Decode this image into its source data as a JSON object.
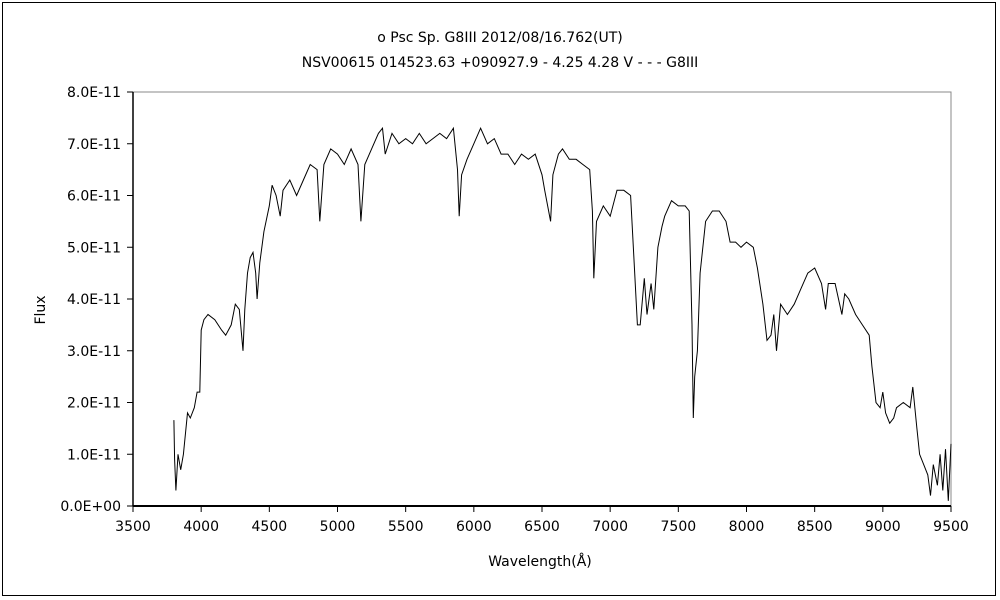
{
  "chart_data": {
    "type": "line",
    "title": "ο  Psc    Sp. G8III    2012/08/16.762(UT)",
    "subtitle": "NSV00615 014523.63 +090927.9 - 4.25 4.28 V - - - G8III",
    "xlabel": "Wavelength(Å)",
    "ylabel": "Flux",
    "xlim": [
      3500,
      9500
    ],
    "ylim": [
      0,
      8e-11
    ],
    "x_ticks": [
      3500,
      4000,
      4500,
      5000,
      5500,
      6000,
      6500,
      7000,
      7500,
      8000,
      8500,
      9000,
      9500
    ],
    "x_tick_labels": [
      "3500",
      "4000",
      "4500",
      "5000",
      "5500",
      "6000",
      "6500",
      "7000",
      "7500",
      "8000",
      "8500",
      "9000",
      "9500"
    ],
    "y_ticks": [
      0,
      1e-11,
      2e-11,
      3e-11,
      4e-11,
      5e-11,
      6e-11,
      7e-11,
      8e-11
    ],
    "y_tick_labels": [
      "0.0E+00",
      "1.0E-11",
      "2.0E-11",
      "3.0E-11",
      "4.0E-11",
      "5.0E-11",
      "6.0E-11",
      "7.0E-11",
      "8.0E-11"
    ],
    "grid": false,
    "line_color": "#000000",
    "series": [
      {
        "unit_scale": 1e-11,
        "points": [
          [
            3800,
            1.66
          ],
          [
            3805,
            0.9
          ],
          [
            3815,
            0.3
          ],
          [
            3830,
            1.0
          ],
          [
            3850,
            0.7
          ],
          [
            3870,
            1.0
          ],
          [
            3900,
            1.8
          ],
          [
            3920,
            1.7
          ],
          [
            3950,
            1.9
          ],
          [
            3970,
            2.2
          ],
          [
            3990,
            2.2
          ],
          [
            4000,
            3.4
          ],
          [
            4020,
            3.6
          ],
          [
            4050,
            3.7
          ],
          [
            4100,
            3.6
          ],
          [
            4150,
            3.4
          ],
          [
            4180,
            3.3
          ],
          [
            4220,
            3.5
          ],
          [
            4250,
            3.9
          ],
          [
            4280,
            3.8
          ],
          [
            4307,
            3.0
          ],
          [
            4320,
            3.8
          ],
          [
            4340,
            4.5
          ],
          [
            4360,
            4.8
          ],
          [
            4380,
            4.9
          ],
          [
            4400,
            4.5
          ],
          [
            4410,
            4.0
          ],
          [
            4430,
            4.7
          ],
          [
            4460,
            5.3
          ],
          [
            4500,
            5.8
          ],
          [
            4520,
            6.2
          ],
          [
            4550,
            6.0
          ],
          [
            4580,
            5.6
          ],
          [
            4600,
            6.1
          ],
          [
            4650,
            6.3
          ],
          [
            4700,
            6.0
          ],
          [
            4750,
            6.3
          ],
          [
            4800,
            6.6
          ],
          [
            4850,
            6.5
          ],
          [
            4870,
            5.5
          ],
          [
            4900,
            6.6
          ],
          [
            4950,
            6.9
          ],
          [
            5000,
            6.8
          ],
          [
            5050,
            6.6
          ],
          [
            5100,
            6.9
          ],
          [
            5150,
            6.6
          ],
          [
            5172,
            5.5
          ],
          [
            5200,
            6.6
          ],
          [
            5250,
            6.9
          ],
          [
            5300,
            7.2
          ],
          [
            5330,
            7.3
          ],
          [
            5350,
            6.8
          ],
          [
            5400,
            7.2
          ],
          [
            5450,
            7.0
          ],
          [
            5500,
            7.1
          ],
          [
            5550,
            7.0
          ],
          [
            5600,
            7.2
          ],
          [
            5650,
            7.0
          ],
          [
            5700,
            7.1
          ],
          [
            5750,
            7.2
          ],
          [
            5800,
            7.1
          ],
          [
            5850,
            7.3
          ],
          [
            5880,
            6.5
          ],
          [
            5893,
            5.6
          ],
          [
            5910,
            6.4
          ],
          [
            5950,
            6.7
          ],
          [
            6000,
            7.0
          ],
          [
            6050,
            7.3
          ],
          [
            6100,
            7.0
          ],
          [
            6150,
            7.1
          ],
          [
            6200,
            6.8
          ],
          [
            6250,
            6.8
          ],
          [
            6300,
            6.6
          ],
          [
            6350,
            6.8
          ],
          [
            6400,
            6.7
          ],
          [
            6450,
            6.8
          ],
          [
            6500,
            6.4
          ],
          [
            6520,
            6.1
          ],
          [
            6563,
            5.5
          ],
          [
            6580,
            6.4
          ],
          [
            6620,
            6.8
          ],
          [
            6650,
            6.9
          ],
          [
            6700,
            6.7
          ],
          [
            6750,
            6.7
          ],
          [
            6800,
            6.6
          ],
          [
            6850,
            6.5
          ],
          [
            6870,
            5.7
          ],
          [
            6880,
            4.4
          ],
          [
            6900,
            5.5
          ],
          [
            6950,
            5.8
          ],
          [
            7000,
            5.6
          ],
          [
            7050,
            6.1
          ],
          [
            7100,
            6.1
          ],
          [
            7150,
            6.0
          ],
          [
            7180,
            4.5
          ],
          [
            7200,
            3.5
          ],
          [
            7220,
            3.5
          ],
          [
            7250,
            4.4
          ],
          [
            7270,
            3.7
          ],
          [
            7300,
            4.3
          ],
          [
            7320,
            3.8
          ],
          [
            7350,
            5.0
          ],
          [
            7380,
            5.4
          ],
          [
            7400,
            5.6
          ],
          [
            7450,
            5.9
          ],
          [
            7500,
            5.8
          ],
          [
            7550,
            5.8
          ],
          [
            7580,
            5.7
          ],
          [
            7600,
            3.5
          ],
          [
            7610,
            1.7
          ],
          [
            7620,
            2.5
          ],
          [
            7640,
            3.0
          ],
          [
            7660,
            4.5
          ],
          [
            7700,
            5.5
          ],
          [
            7750,
            5.7
          ],
          [
            7800,
            5.7
          ],
          [
            7850,
            5.5
          ],
          [
            7880,
            5.1
          ],
          [
            7920,
            5.1
          ],
          [
            7960,
            5.0
          ],
          [
            8000,
            5.1
          ],
          [
            8050,
            5.0
          ],
          [
            8080,
            4.6
          ],
          [
            8120,
            3.9
          ],
          [
            8150,
            3.2
          ],
          [
            8180,
            3.3
          ],
          [
            8200,
            3.7
          ],
          [
            8220,
            3.0
          ],
          [
            8250,
            3.9
          ],
          [
            8300,
            3.7
          ],
          [
            8350,
            3.9
          ],
          [
            8400,
            4.2
          ],
          [
            8450,
            4.5
          ],
          [
            8500,
            4.6
          ],
          [
            8550,
            4.3
          ],
          [
            8580,
            3.8
          ],
          [
            8600,
            4.3
          ],
          [
            8650,
            4.3
          ],
          [
            8700,
            3.7
          ],
          [
            8720,
            4.1
          ],
          [
            8750,
            4.0
          ],
          [
            8800,
            3.7
          ],
          [
            8850,
            3.5
          ],
          [
            8900,
            3.3
          ],
          [
            8920,
            2.7
          ],
          [
            8950,
            2.0
          ],
          [
            8980,
            1.9
          ],
          [
            9000,
            2.2
          ],
          [
            9020,
            1.8
          ],
          [
            9050,
            1.6
          ],
          [
            9080,
            1.7
          ],
          [
            9100,
            1.9
          ],
          [
            9150,
            2.0
          ],
          [
            9200,
            1.9
          ],
          [
            9220,
            2.3
          ],
          [
            9250,
            1.5
          ],
          [
            9270,
            1.0
          ],
          [
            9300,
            0.8
          ],
          [
            9330,
            0.6
          ],
          [
            9350,
            0.2
          ],
          [
            9370,
            0.8
          ],
          [
            9400,
            0.4
          ],
          [
            9420,
            1.0
          ],
          [
            9440,
            0.3
          ],
          [
            9460,
            1.1
          ],
          [
            9480,
            0.1
          ],
          [
            9500,
            1.2
          ]
        ]
      }
    ]
  }
}
